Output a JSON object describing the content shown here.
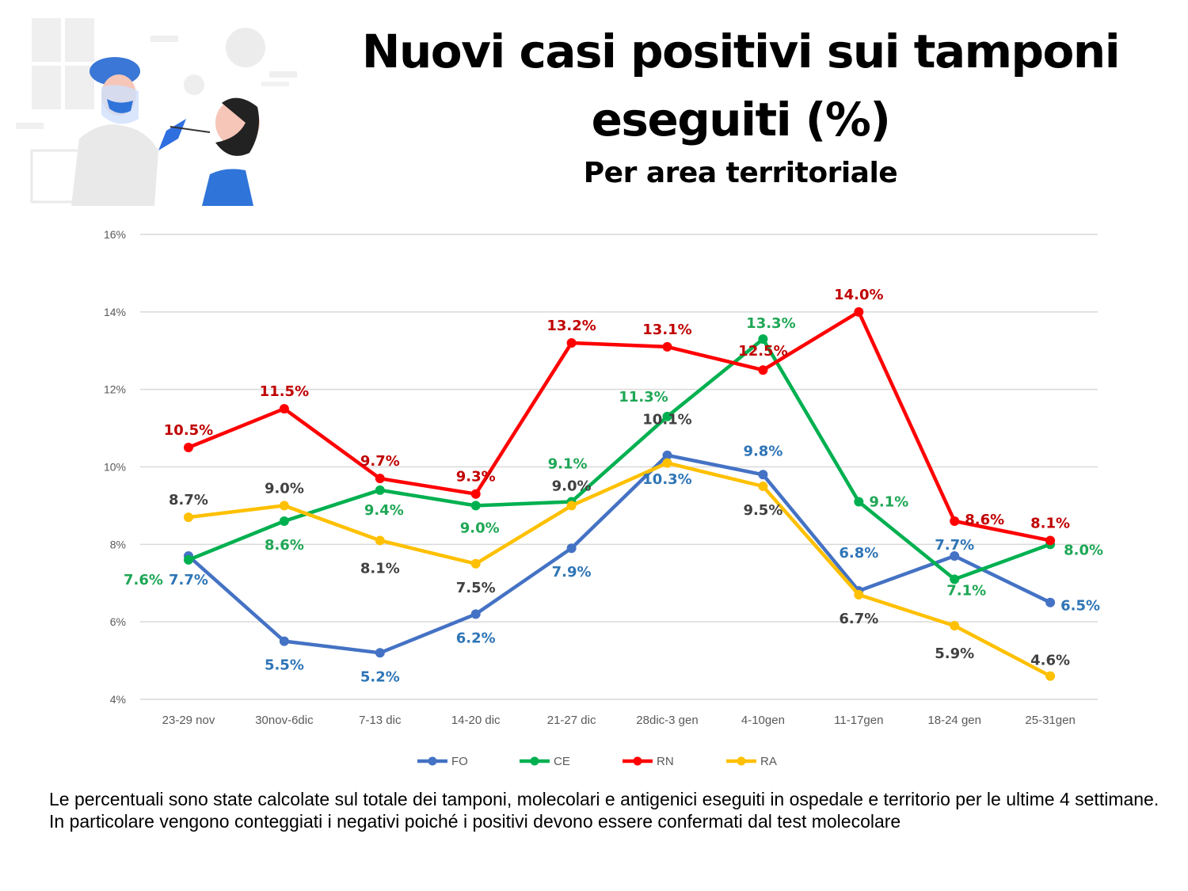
{
  "header": {
    "title": "Nuovi casi positivi sui tamponi eseguiti (%)",
    "subtitle": "Per area territoriale"
  },
  "illustration": {
    "icon": "nasal-swab-test-illustration"
  },
  "chart_data": {
    "type": "line",
    "title": "Nuovi casi positivi sui tamponi eseguiti (%)",
    "subtitle": "Per area territoriale",
    "xlabel": "",
    "ylabel": "",
    "ylim": [
      4,
      16
    ],
    "yticks": [
      4,
      6,
      8,
      10,
      12,
      14,
      16
    ],
    "ytick_labels": [
      "4%",
      "6%",
      "8%",
      "10%",
      "12%",
      "14%",
      "16%"
    ],
    "grid": true,
    "legend_position": "bottom",
    "categories": [
      "23-29 nov",
      "30nov-6dic",
      "7-13 dic",
      "14-20 dic",
      "21-27 dic",
      "28dic-3 gen",
      "4-10gen",
      "11-17gen",
      "18-24 gen",
      "25-31gen"
    ],
    "series": [
      {
        "name": "FO",
        "color": "#4472C4",
        "label_color": "#2E75B6",
        "values": [
          7.7,
          5.5,
          5.2,
          6.2,
          7.9,
          10.3,
          9.8,
          6.8,
          7.7,
          6.5
        ],
        "labels": [
          "7.7%",
          "5.5%",
          "5.2%",
          "6.2%",
          "7.9%",
          "10.3%",
          "9.8%",
          "6.8%",
          "7.7%",
          "6.5%"
        ]
      },
      {
        "name": "CE",
        "color": "#00B050",
        "label_color": "#1EA755",
        "values": [
          7.6,
          8.6,
          9.4,
          9.0,
          9.1,
          11.3,
          13.3,
          9.1,
          7.1,
          8.0
        ],
        "labels": [
          "7.6%",
          "8.6%",
          "9.4%",
          "9.0%",
          "9.1%",
          "11.3%",
          "13.3%",
          "9.1%",
          "7.1%",
          "8.0%"
        ]
      },
      {
        "name": "RN",
        "color": "#FF0000",
        "label_color": "#C00000",
        "values": [
          10.5,
          11.5,
          9.7,
          9.3,
          13.2,
          13.1,
          12.5,
          14.0,
          8.6,
          8.1
        ],
        "labels": [
          "10.5%",
          "11.5%",
          "9.7%",
          "9.3%",
          "13.2%",
          "13.1%",
          "12.5%",
          "14.0%",
          "8.6%",
          "8.1%"
        ]
      },
      {
        "name": "RA",
        "color": "#FFC000",
        "label_color": "#404040",
        "values": [
          8.7,
          9.0,
          8.1,
          7.5,
          9.0,
          10.1,
          9.5,
          6.7,
          5.9,
          4.6
        ],
        "labels": [
          "8.7%",
          "9.0%",
          "8.1%",
          "7.5%",
          "9.0%",
          "10.1%",
          "9.5%",
          "6.7%",
          "5.9%",
          "4.6%"
        ]
      }
    ]
  },
  "footnote": {
    "line1": "Le percentuali sono state calcolate sul totale dei tamponi, molecolari e antigenici eseguiti in ospedale e territorio per le ultime 4 settimane.",
    "line2": "In particolare vengono conteggiati i negativi poiché i positivi devono essere confermati dal test molecolare"
  }
}
